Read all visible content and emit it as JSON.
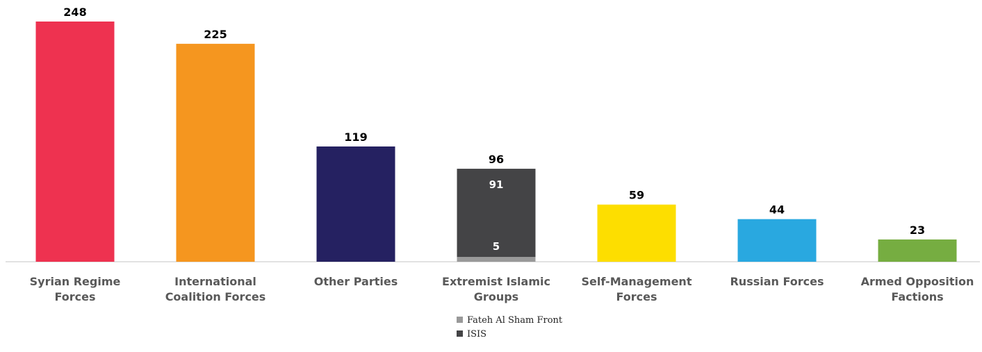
{
  "chart_data": {
    "type": "bar",
    "categories": [
      "Syrian Regime Forces",
      "International Coalition Forces",
      "Other Parties",
      "Extremist Islamic Groups",
      "Self-Management Forces",
      "Russian Forces",
      "Armed Opposition Factions"
    ],
    "values": [
      248,
      225,
      119,
      96,
      59,
      44,
      23
    ],
    "colors": [
      "#ee3250",
      "#f5961f",
      "#252161",
      null,
      "#fdde00",
      "#29a8e0",
      "#76ad41"
    ],
    "stacked_breakdown": {
      "category": "Extremist Islamic Groups",
      "segments": [
        {
          "name": "Fateh Al Sham Front",
          "value": 5,
          "color": "#999999"
        },
        {
          "name": "ISIS",
          "value": 91,
          "color": "#444446"
        }
      ]
    },
    "legend": [
      {
        "name": "Fateh Al Sham Front",
        "color": "#999999"
      },
      {
        "name": "ISIS",
        "color": "#444446"
      }
    ],
    "legend_position": "bottom-center",
    "ylim": [
      0,
      248
    ],
    "grid": false,
    "title": "",
    "xlabel": "",
    "ylabel": ""
  }
}
